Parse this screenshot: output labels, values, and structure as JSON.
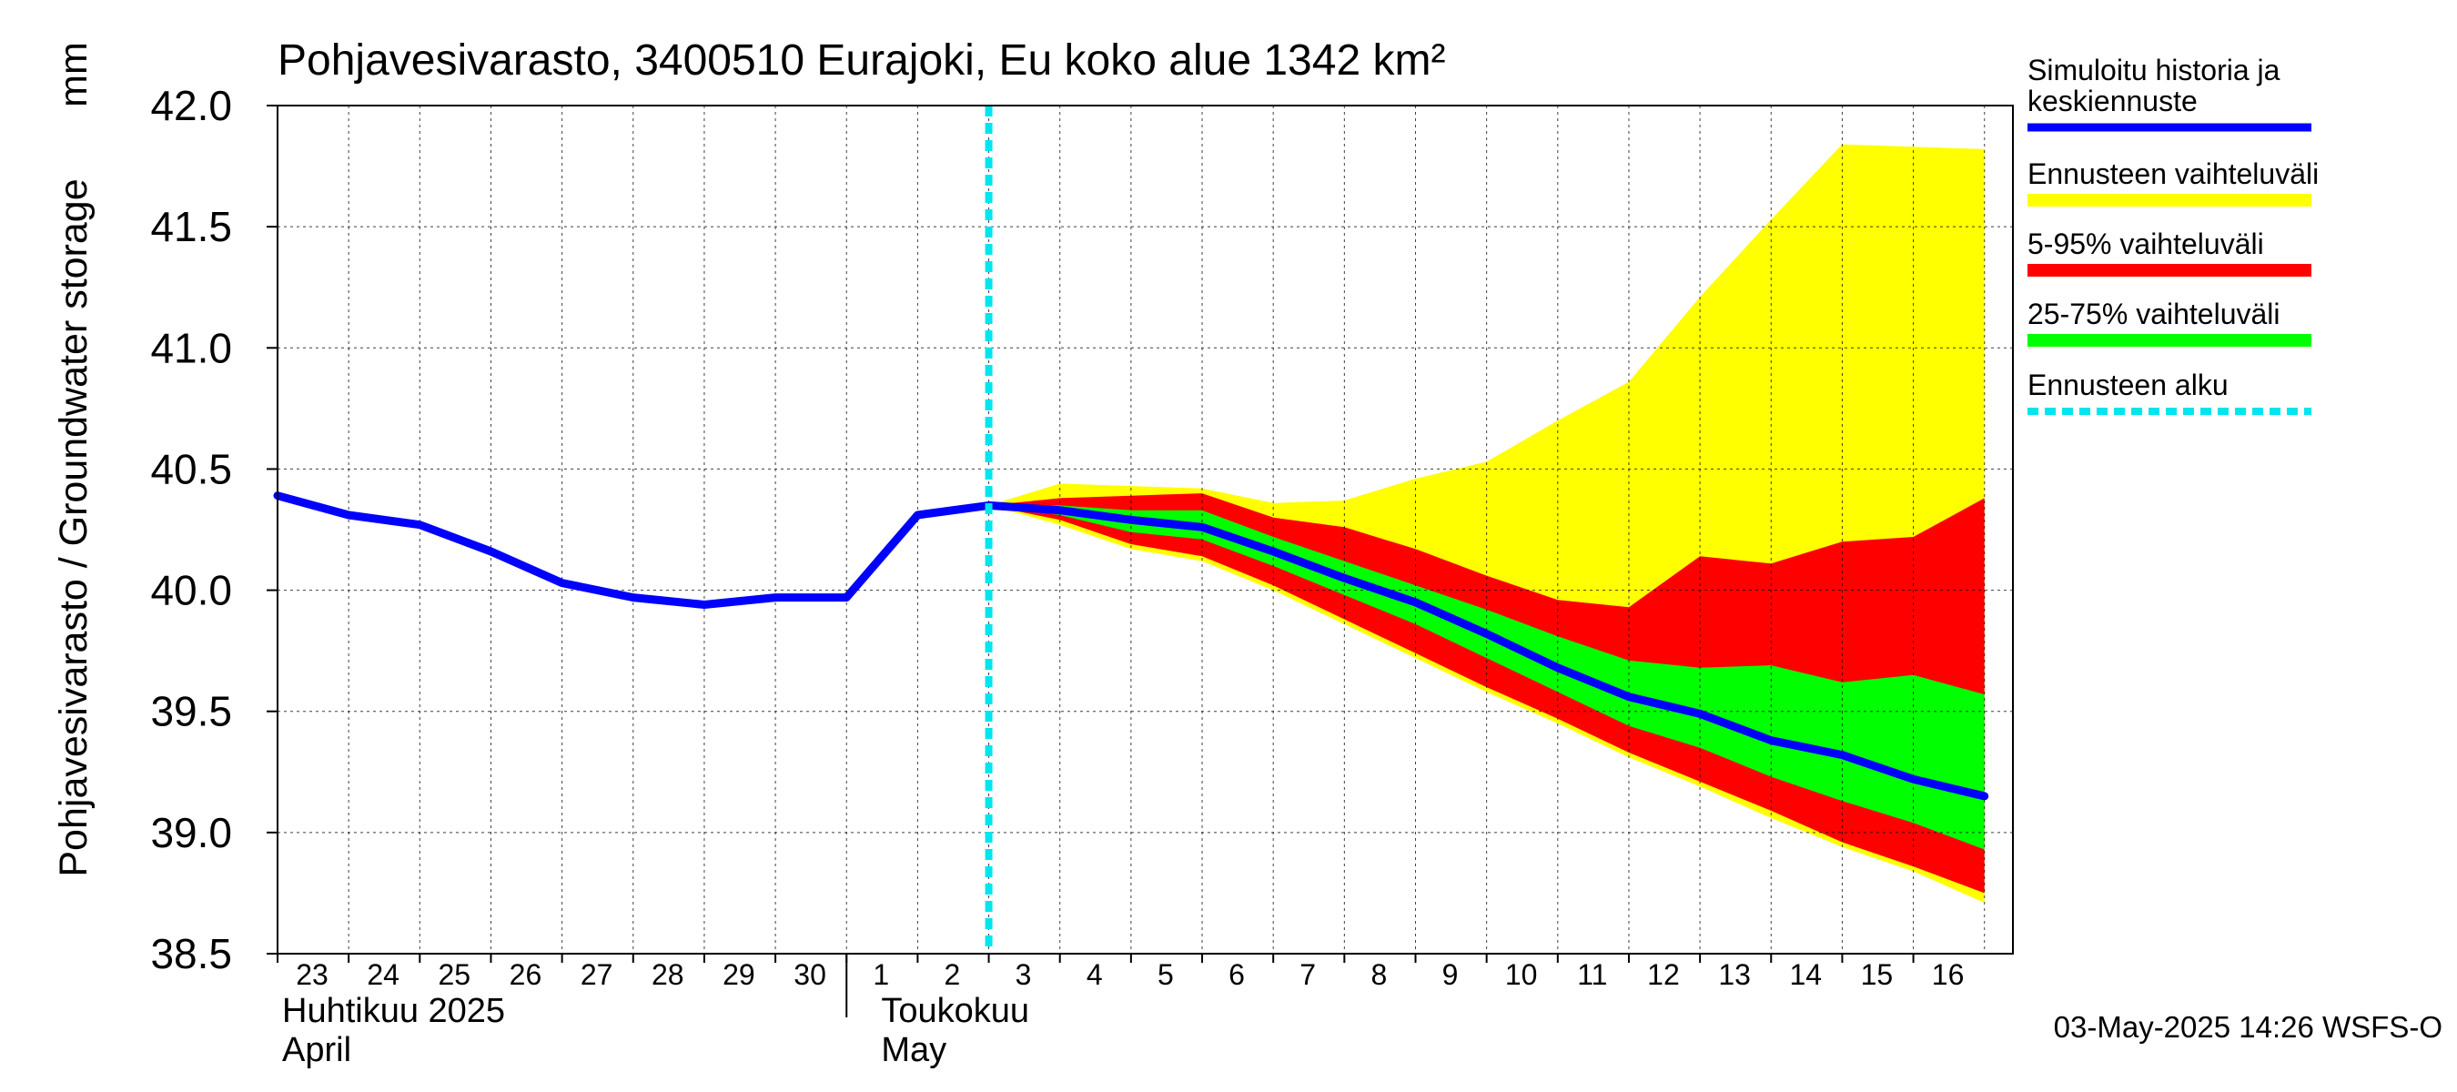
{
  "chart_data": {
    "type": "area",
    "title": "Pohjavesivarasto, 3400510 Eurajoki, Eu koko alue 1342 km²",
    "ylabel": "Pohjavesivarasto / Groundwater storage",
    "yunit": "mm",
    "ylim": [
      38.5,
      42.0
    ],
    "yticks": [
      "38.5",
      "39.0",
      "39.5",
      "40.0",
      "40.5",
      "41.0",
      "41.5",
      "42.0"
    ],
    "grid": true,
    "legend_position": "right",
    "x_ticks": [
      "23",
      "24",
      "25",
      "26",
      "27",
      "28",
      "29",
      "30",
      "1",
      "2",
      "3",
      "4",
      "5",
      "6",
      "7",
      "8",
      "9",
      "10",
      "11",
      "12",
      "13",
      "14",
      "15",
      "16"
    ],
    "months": [
      {
        "fi": "Huhtikuu  2025",
        "en": "April"
      },
      {
        "fi": "Toukokuu",
        "en": "May"
      }
    ],
    "forecast_start_x": 3.0,
    "legend": [
      {
        "label_lines": [
          "Simuloitu historia ja",
          "keskiennuste"
        ],
        "color": "#0000ff",
        "style": "line"
      },
      {
        "label_lines": [
          "Ennusteen vaihteluväli"
        ],
        "color": "#ffff00",
        "style": "band"
      },
      {
        "label_lines": [
          "5-95% vaihteluväli"
        ],
        "color": "#ff0000",
        "style": "band"
      },
      {
        "label_lines": [
          "25-75% vaihteluväli"
        ],
        "color": "#00ff00",
        "style": "band"
      },
      {
        "label_lines": [
          "Ennusteen alku"
        ],
        "color": "#00e5ee",
        "style": "dashed"
      }
    ],
    "series": [
      {
        "name": "Simuloitu historia ja keskiennuste",
        "x": [
          -7.0,
          -6.0,
          -5.0,
          -4.0,
          -3.0,
          -2.0,
          -1.0,
          0.0,
          1.0,
          2.0,
          3.0,
          4.0,
          5.0,
          6.0,
          7.0,
          8.0,
          9.0,
          10.0,
          11.0,
          12.0,
          13.0,
          14.0,
          15.0,
          16.0,
          17.0
        ],
        "y": [
          40.39,
          40.31,
          40.27,
          40.16,
          40.03,
          39.97,
          39.94,
          39.97,
          39.97,
          40.31,
          40.35,
          40.33,
          40.29,
          40.26,
          40.16,
          40.05,
          39.95,
          39.82,
          39.68,
          39.56,
          39.49,
          39.38,
          39.32,
          39.22,
          39.15
        ]
      },
      {
        "name": "Ennusteen vaihteluväli",
        "x": [
          3.0,
          4.0,
          5.0,
          6.0,
          7.0,
          8.0,
          9.0,
          10.0,
          11.0,
          12.0,
          13.0,
          14.0,
          15.0,
          16.0,
          17.0
        ],
        "lower": [
          40.35,
          40.27,
          40.17,
          40.12,
          40.0,
          39.86,
          39.72,
          39.58,
          39.45,
          39.31,
          39.19,
          39.06,
          38.94,
          38.84,
          38.71
        ],
        "upper": [
          40.35,
          40.44,
          40.43,
          40.42,
          40.36,
          40.37,
          40.46,
          40.53,
          40.7,
          40.86,
          41.21,
          41.53,
          41.84,
          41.83,
          41.82
        ]
      },
      {
        "name": "5-95% vaihteluväli",
        "x": [
          3.0,
          4.0,
          5.0,
          6.0,
          7.0,
          8.0,
          9.0,
          10.0,
          11.0,
          12.0,
          13.0,
          14.0,
          15.0,
          16.0,
          17.0
        ],
        "lower": [
          40.35,
          40.29,
          40.19,
          40.14,
          40.02,
          39.88,
          39.74,
          39.6,
          39.47,
          39.33,
          39.21,
          39.09,
          38.96,
          38.86,
          38.75
        ],
        "upper": [
          40.35,
          40.38,
          40.39,
          40.4,
          40.3,
          40.26,
          40.17,
          40.06,
          39.96,
          39.93,
          40.14,
          40.11,
          40.2,
          40.22,
          40.38
        ]
      },
      {
        "name": "25-75% vaihteluväli",
        "x": [
          3.0,
          4.0,
          5.0,
          6.0,
          7.0,
          8.0,
          9.0,
          10.0,
          11.0,
          12.0,
          13.0,
          14.0,
          15.0,
          16.0,
          17.0
        ],
        "lower": [
          40.35,
          40.31,
          40.24,
          40.21,
          40.1,
          39.98,
          39.86,
          39.72,
          39.58,
          39.44,
          39.35,
          39.23,
          39.13,
          39.04,
          38.93
        ],
        "upper": [
          40.35,
          40.35,
          40.33,
          40.33,
          40.22,
          40.12,
          40.02,
          39.92,
          39.81,
          39.71,
          39.68,
          39.69,
          39.62,
          39.65,
          39.57
        ]
      }
    ]
  },
  "footer": {
    "timestamp": "03-May-2025 14:26 WSFS-O"
  }
}
